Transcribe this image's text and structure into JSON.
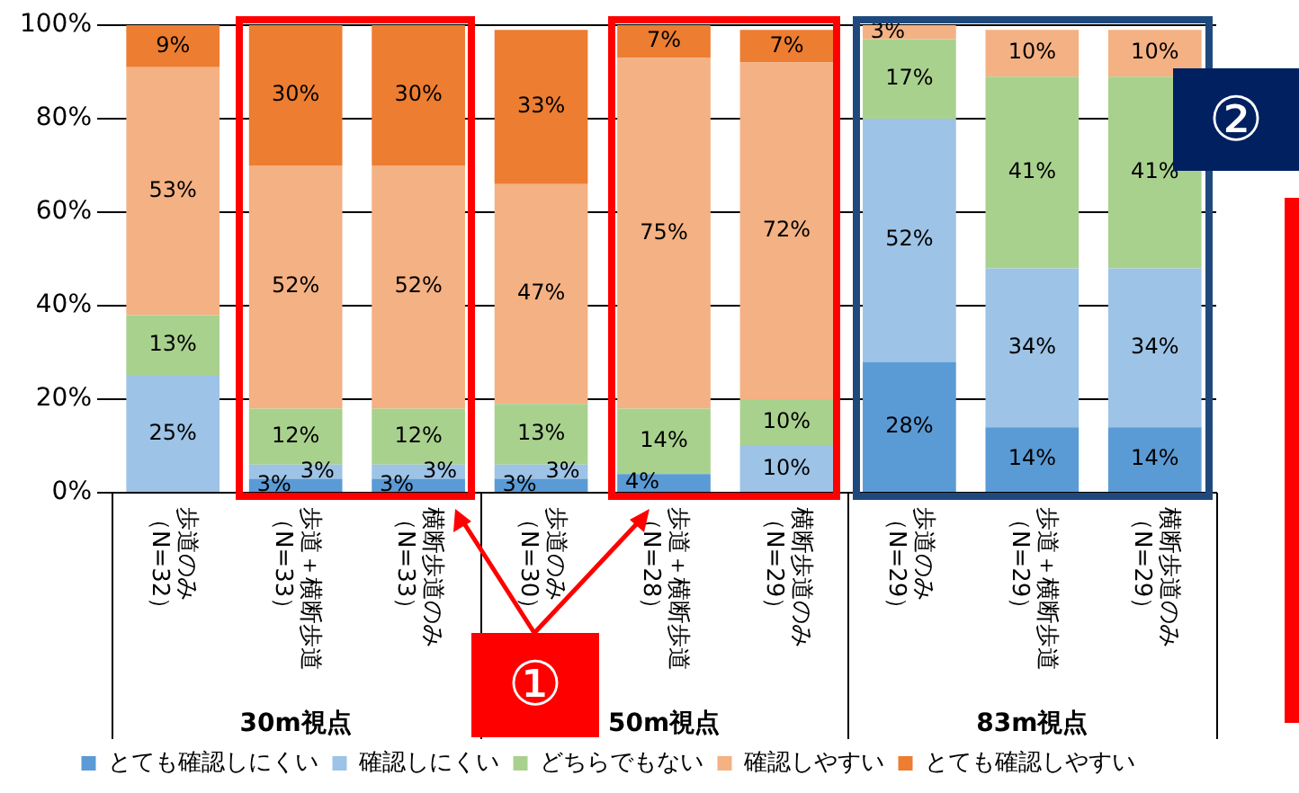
{
  "chart_data": {
    "type": "bar",
    "stacked": true,
    "legend": "bottom",
    "grid": "y",
    "categories": [
      "歩道のみ（N=32）",
      "歩道＋横断歩道（N=33）",
      "横断歩道のみ（N=33）",
      "歩道のみ（N=30）",
      "歩道＋横断歩道（N=28）",
      "横断歩道のみ（N=29）",
      "歩道のみ（N=29）",
      "歩道＋横断歩道（N=29）",
      "横断歩道のみ（N=29）"
    ],
    "ylim": [
      0,
      100
    ],
    "yticks": [
      {
        "value": 0,
        "label": "0%"
      },
      {
        "value": 20,
        "label": "20%"
      },
      {
        "value": 40,
        "label": "40%"
      },
      {
        "value": 60,
        "label": "60%"
      },
      {
        "value": 80,
        "label": "80%"
      },
      {
        "value": 100,
        "label": "100%"
      }
    ],
    "series": [
      {
        "name": "とても確認しにくい",
        "color": "#5b9bd5",
        "values": [
          0,
          3,
          3,
          3,
          4,
          0,
          28,
          14,
          14
        ],
        "value_labels": [
          null,
          "3%",
          "3%",
          "3%",
          "4%",
          null,
          "28%",
          "14%",
          "14%"
        ]
      },
      {
        "name": "確認しにくい",
        "color": "#9dc3e6",
        "values": [
          25,
          3,
          3,
          3,
          0,
          10,
          52,
          34,
          34
        ],
        "value_labels": [
          "25%",
          "3%",
          "3%",
          "3%",
          null,
          "10%",
          "52%",
          "34%",
          "34%"
        ]
      },
      {
        "name": "どちらでもない",
        "color": "#a9d18e",
        "values": [
          13,
          12,
          12,
          13,
          14,
          10,
          17,
          41,
          41
        ],
        "value_labels": [
          "13%",
          "12%",
          "12%",
          "13%",
          "14%",
          "10%",
          "17%",
          "41%",
          "41%"
        ]
      },
      {
        "name": "確認しやすい",
        "color": "#f4b183",
        "values": [
          53,
          52,
          52,
          47,
          75,
          72,
          3,
          10,
          10
        ],
        "value_labels": [
          "53%",
          "52%",
          "52%",
          "47%",
          "75%",
          "72%",
          "3%",
          "10%",
          "10%"
        ]
      },
      {
        "name": "とても確認しやすい",
        "color": "#ed7d31",
        "values": [
          9,
          30,
          30,
          33,
          7,
          7,
          0,
          0,
          0
        ],
        "value_labels": [
          "9%",
          "30%",
          "30%",
          "33%",
          "7%",
          "7%",
          null,
          null,
          null
        ]
      }
    ],
    "annotations": [
      "30m視点",
      "50m視点",
      "83m視点",
      "①",
      "②"
    ]
  }
}
